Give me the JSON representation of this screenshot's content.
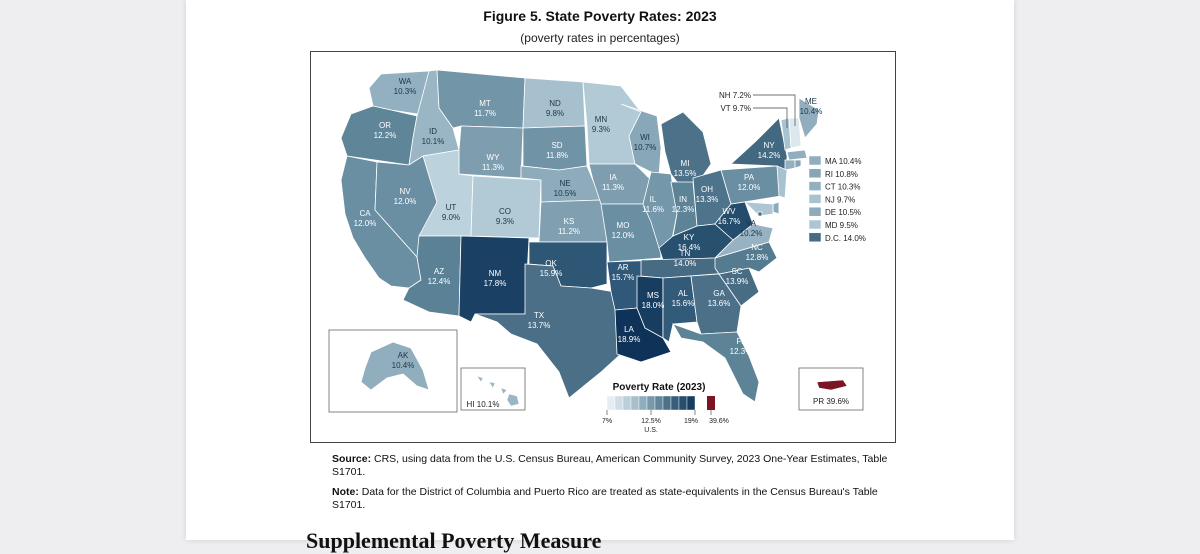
{
  "figure": {
    "title": "Figure 5. State Poverty Rates: 2023",
    "subtitle": "(poverty rates in percentages)"
  },
  "colors": {
    "background_outer": "#eeeef0",
    "page": "#ffffff",
    "border": "#444444",
    "pr_color": "#7b1423"
  },
  "states": [
    {
      "abbr": "WA",
      "value": "10.3%",
      "color": "#93b0c0"
    },
    {
      "abbr": "OR",
      "value": "12.2%",
      "color": "#5f8599"
    },
    {
      "abbr": "CA",
      "value": "12.0%",
      "color": "#6a8ea2"
    },
    {
      "abbr": "ID",
      "value": "10.1%",
      "color": "#9ab6c5"
    },
    {
      "abbr": "NV",
      "value": "12.0%",
      "color": "#6a8ea2"
    },
    {
      "abbr": "MT",
      "value": "11.7%",
      "color": "#7395a8"
    },
    {
      "abbr": "WY",
      "value": "11.3%",
      "color": "#7e9eb0"
    },
    {
      "abbr": "UT",
      "value": "9.0%",
      "color": "#bcd2dc"
    },
    {
      "abbr": "AZ",
      "value": "12.4%",
      "color": "#5b8196"
    },
    {
      "abbr": "CO",
      "value": "9.3%",
      "color": "#b2cad6"
    },
    {
      "abbr": "NM",
      "value": "17.8%",
      "color": "#1a4163"
    },
    {
      "abbr": "ND",
      "value": "9.8%",
      "color": "#a6c0ce"
    },
    {
      "abbr": "SD",
      "value": "11.8%",
      "color": "#7093a6"
    },
    {
      "abbr": "NE",
      "value": "10.5%",
      "color": "#8dabbb"
    },
    {
      "abbr": "KS",
      "value": "11.2%",
      "color": "#80a0b1"
    },
    {
      "abbr": "OK",
      "value": "15.9%",
      "color": "#2e5675"
    },
    {
      "abbr": "TX",
      "value": "13.7%",
      "color": "#4a6f86"
    },
    {
      "abbr": "MN",
      "value": "9.3%",
      "color": "#b2cad6"
    },
    {
      "abbr": "IA",
      "value": "11.3%",
      "color": "#7e9eb0"
    },
    {
      "abbr": "MO",
      "value": "12.0%",
      "color": "#6a8ea2"
    },
    {
      "abbr": "AR",
      "value": "15.7%",
      "color": "#305878"
    },
    {
      "abbr": "LA",
      "value": "18.9%",
      "color": "#0f3358"
    },
    {
      "abbr": "WI",
      "value": "10.7%",
      "color": "#88a7b8"
    },
    {
      "abbr": "IL",
      "value": "11.6%",
      "color": "#7597aa"
    },
    {
      "abbr": "MI",
      "value": "13.5%",
      "color": "#4c7188"
    },
    {
      "abbr": "IN",
      "value": "12.3%",
      "color": "#5d8397"
    },
    {
      "abbr": "OH",
      "value": "13.3%",
      "color": "#4e748b"
    },
    {
      "abbr": "KY",
      "value": "16.4%",
      "color": "#28506f"
    },
    {
      "abbr": "TN",
      "value": "14.0%",
      "color": "#466b83"
    },
    {
      "abbr": "MS",
      "value": "18.0%",
      "color": "#173d60"
    },
    {
      "abbr": "AL",
      "value": "15.6%",
      "color": "#325a79"
    },
    {
      "abbr": "GA",
      "value": "13.6%",
      "color": "#4b7087"
    },
    {
      "abbr": "FL",
      "value": "12.3%",
      "color": "#5d8397"
    },
    {
      "abbr": "SC",
      "value": "13.9%",
      "color": "#476c84"
    },
    {
      "abbr": "NC",
      "value": "12.8%",
      "color": "#557b91"
    },
    {
      "abbr": "VA",
      "value": "10.2%",
      "color": "#97b3c3"
    },
    {
      "abbr": "WV",
      "value": "16.7%",
      "color": "#244c6c"
    },
    {
      "abbr": "PA",
      "value": "12.0%",
      "color": "#6a8ea2"
    },
    {
      "abbr": "NY",
      "value": "14.2%",
      "color": "#436881"
    },
    {
      "abbr": "ME",
      "value": "10.4%",
      "color": "#90aebe"
    },
    {
      "abbr": "VT",
      "value": "9.7%",
      "color": "#a8c2cf"
    },
    {
      "abbr": "NH",
      "value": "7.2%",
      "color": "#dde8ee"
    },
    {
      "abbr": "MA",
      "value": "10.4%",
      "color": "#90aebe"
    },
    {
      "abbr": "RI",
      "value": "10.8%",
      "color": "#86a5b6"
    },
    {
      "abbr": "CT",
      "value": "10.3%",
      "color": "#93b0c0"
    },
    {
      "abbr": "NJ",
      "value": "9.7%",
      "color": "#a8c2cf"
    },
    {
      "abbr": "DE",
      "value": "10.5%",
      "color": "#8dabbb"
    },
    {
      "abbr": "MD",
      "value": "9.5%",
      "color": "#adc6d3"
    },
    {
      "abbr": "D.C.",
      "value": "14.0%",
      "color": "#466b83"
    },
    {
      "abbr": "AK",
      "value": "10.4%",
      "color": "#90aebe"
    },
    {
      "abbr": "HI",
      "value": "10.1%",
      "color": "#9ab6c5"
    },
    {
      "abbr": "PR",
      "value": "39.6%",
      "color": "#7b1423"
    }
  ],
  "callouts": {
    "nh": "NH 7.2%",
    "vt": "VT 9.7%",
    "me": "ME",
    "me_value": "10.4%",
    "hi": "HI 10.1%",
    "pr": "PR 39.6%"
  },
  "side_legend": [
    {
      "label": "MA 10.4%",
      "color": "#90aebe"
    },
    {
      "label": "RI 10.8%",
      "color": "#86a5b6"
    },
    {
      "label": "CT 10.3%",
      "color": "#93b0c0"
    },
    {
      "label": "NJ 9.7%",
      "color": "#a8c2cf"
    },
    {
      "label": "DE 10.5%",
      "color": "#8dabbb"
    },
    {
      "label": "MD 9.5%",
      "color": "#adc6d3"
    },
    {
      "label": "D.C. 14.0%",
      "color": "#466b83"
    }
  ],
  "scale": {
    "title": "Poverty Rate (2023)",
    "colors": [
      "#e6eef2",
      "#cfdee6",
      "#bacfda",
      "#a5bfcd",
      "#8fadbe",
      "#7899ac",
      "#62879b",
      "#4c7189",
      "#375f7c",
      "#264e6e",
      "#173d60"
    ],
    "min_label": "7%",
    "us_label": "12.5%",
    "us_sub": "U.S.",
    "max_label": "19%",
    "pr_label": "39.6%"
  },
  "notes": {
    "source_label": "Source:",
    "source_text": " CRS, using data from the U.S. Census Bureau, American Community Survey, 2023 One-Year Estimates, Table S1701.",
    "note_label": "Note:",
    "note_text": " Data for the District of Columbia and Puerto Rico are treated as state-equivalents in the Census Bureau's Table S1701."
  },
  "next_heading": "Supplemental Poverty Measure"
}
